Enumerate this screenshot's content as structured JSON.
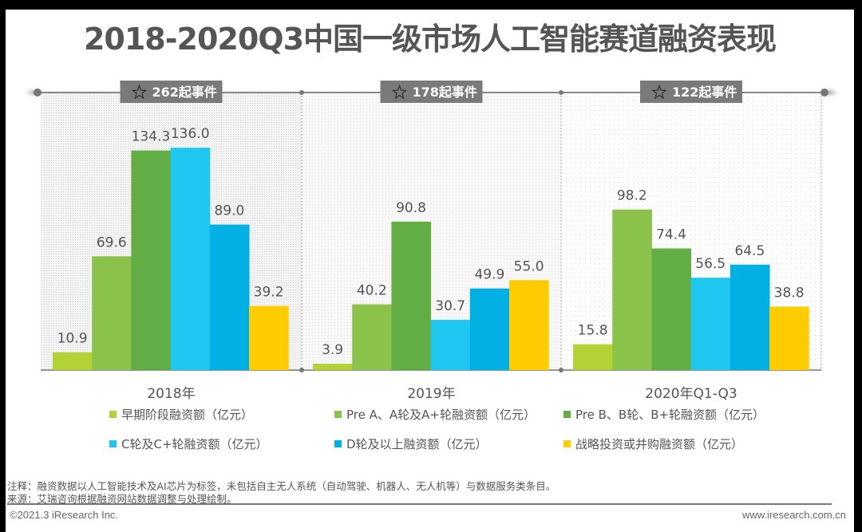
{
  "title": "2018-2020Q3中国一级市场人工智能赛道融资表现",
  "chart_data": {
    "type": "bar",
    "title": "2018-2020Q3中国一级市场人工智能赛道融资表现",
    "xlabel": "",
    "ylabel": "",
    "unit": "亿元",
    "categories": [
      "2018年",
      "2019年",
      "2020年Q1-Q3"
    ],
    "event_counts": [
      "262起事件",
      "178起事件",
      "122起事件"
    ],
    "series": [
      {
        "name": "早期阶段融资额（亿元）",
        "color": "#b2d235",
        "values": [
          10.9,
          3.9,
          15.8
        ]
      },
      {
        "name": "Pre A、A轮及A+轮融资额（亿元）",
        "color": "#8bc34a",
        "values": [
          69.6,
          40.2,
          98.2
        ]
      },
      {
        "name": "Pre B、B轮、B+轮融资额（亿元）",
        "color": "#63ad45",
        "values": [
          134.3,
          90.8,
          74.4
        ]
      },
      {
        "name": "C轮及C+轮融资额（亿元）",
        "color": "#1fc6f0",
        "values": [
          136.0,
          30.7,
          56.5
        ]
      },
      {
        "name": "D轮及以上融资额（亿元）",
        "color": "#00afe3",
        "values": [
          89.0,
          49.9,
          64.5
        ]
      },
      {
        "name": "战略投资或并购融资额（亿元）",
        "color": "#ffcc00",
        "values": [
          39.2,
          55.0,
          38.8
        ]
      }
    ],
    "ylim": [
      0,
      140
    ],
    "grid": false,
    "legend_position": "bottom"
  },
  "notes": {
    "note": "注释：融资数据以人工智能技术及AI芯片为标签，未包括自主无人系统（自动驾驶、机器人、无人机等）与数据服务类条目。",
    "source": "来源：艾瑞咨询根据融资网站数据调整与处理绘制。"
  },
  "footer": {
    "copyright": "©2021.3 iResearch Inc.",
    "website": "www.iresearch.com.cn"
  },
  "colors": {
    "badge_bg": "#7a7a7a",
    "axis": "#777777",
    "text": "#555555"
  }
}
